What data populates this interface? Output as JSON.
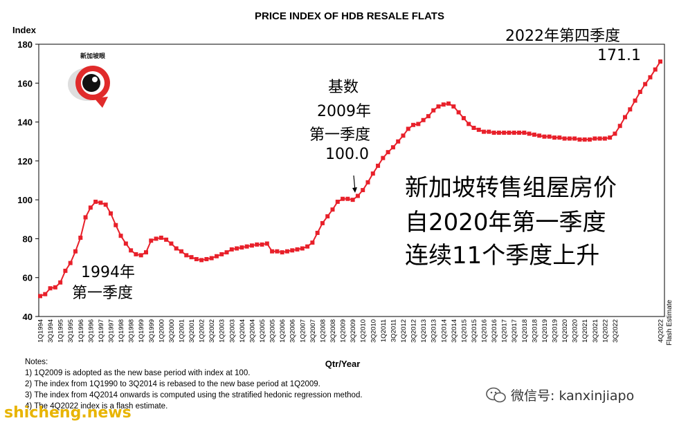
{
  "chart_data": {
    "type": "line",
    "title": "PRICE INDEX OF HDB RESALE FLATS",
    "ylabel": "Index",
    "xlabel": "Qtr/Year",
    "ylim": [
      40,
      180
    ],
    "y_ticks": [
      40,
      60,
      80,
      100,
      120,
      140,
      160,
      180
    ],
    "x_tick_labels": [
      "1Q1994",
      "3Q1994",
      "1Q1995",
      "3Q1995",
      "1Q1996",
      "3Q1996",
      "1Q1997",
      "3Q1997",
      "1Q1998",
      "3Q1998",
      "1Q1999",
      "3Q1999",
      "1Q2000",
      "3Q2000",
      "1Q2001",
      "3Q2001",
      "1Q2002",
      "3Q2002",
      "1Q2003",
      "3Q2003",
      "1Q2004",
      "3Q2004",
      "1Q2005",
      "3Q2005",
      "1Q2006",
      "3Q2006",
      "1Q2007",
      "3Q2007",
      "1Q2008",
      "3Q2008",
      "1Q2009",
      "3Q2009",
      "1Q2010",
      "3Q2010",
      "1Q2011",
      "3Q2011",
      "1Q2012",
      "3Q2012",
      "1Q2013",
      "3Q2013",
      "1Q2014",
      "3Q2014",
      "1Q2015",
      "3Q2015",
      "1Q2016",
      "3Q2016",
      "1Q2017",
      "3Q2017",
      "1Q2018",
      "3Q2018",
      "1Q2019",
      "3Q2019",
      "1Q2020",
      "3Q2020",
      "1Q2021",
      "3Q2021",
      "1Q2022",
      "3Q2022",
      "4Q2022"
    ],
    "flash_label": "Flash Estimate",
    "grid": false,
    "series": [
      {
        "color": "#e8202a",
        "values": [
          50.5,
          51.5,
          54.5,
          55,
          57.5,
          63.5,
          67.5,
          73.5,
          80.5,
          91,
          96,
          99,
          98.5,
          97.5,
          93,
          87,
          81.5,
          77.5,
          74,
          72,
          71.5,
          73,
          79,
          80,
          80.5,
          79.5,
          77.5,
          75,
          73.5,
          71.5,
          70.5,
          69.5,
          69,
          69.5,
          70,
          71,
          72,
          73,
          74.5,
          75,
          75.5,
          76,
          76.5,
          77,
          77,
          77.5,
          73.5,
          73.5,
          73,
          73.5,
          74,
          74.5,
          75,
          76,
          78,
          83,
          88,
          91.5,
          95,
          99,
          100.5,
          100.5,
          100,
          102,
          105,
          109,
          113.5,
          117.5,
          121.5,
          124.5,
          127,
          130,
          133,
          136.5,
          138.5,
          139,
          141,
          143,
          146,
          148,
          149,
          149.5,
          148,
          145,
          142,
          139,
          137,
          136,
          135,
          135,
          134.5,
          134.5,
          134.5,
          134.5,
          134.5,
          134.5,
          134.5,
          134,
          133.5,
          133,
          132.5,
          132.5,
          132,
          132,
          131.5,
          131.5,
          131.5,
          131,
          131,
          131,
          131.5,
          131.5,
          131.5,
          132,
          134,
          138,
          142.5,
          146.5,
          151,
          155.5,
          159.5,
          163,
          167,
          171.1
        ]
      }
    ],
    "annotations": {
      "end_title": "2022年第四季度",
      "end_value": "171.1",
      "base_l1": "基数",
      "base_l2": "2009年",
      "base_l3": "第一季度",
      "base_l4": "100.0",
      "start_l1": "1994年",
      "start_l2": "第一季度",
      "headline_l1": "新加坡转售组屋房价",
      "headline_l2": "自2020年第一季度",
      "headline_l3": "连续11个季度上升"
    }
  },
  "notes": {
    "heading": "Notes:",
    "items": [
      "1) 1Q2009 is adopted as the new base period with index at 100.",
      "2) The index from 1Q1990 to 3Q2014 is rebased to the new base period at 1Q2009.",
      "3) The index from 4Q2014 onwards is computed using the stratified hedonic regression method.",
      "4) The 4Q2022 index is a flash estimate."
    ]
  },
  "logo": {
    "text": "新加坡眼"
  },
  "wechat": {
    "text": "微信号: kanxinjiapo"
  },
  "watermark": {
    "text": "shicheng.news"
  }
}
